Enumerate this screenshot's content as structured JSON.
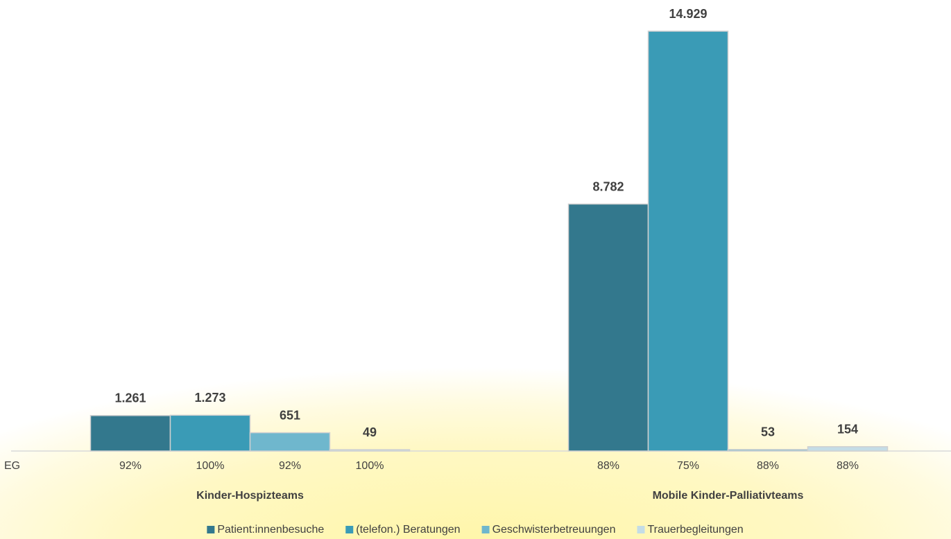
{
  "chart_data": {
    "type": "bar",
    "categories": [
      "Kinder-Hospizteams",
      "Mobile Kinder-Palliativteams"
    ],
    "series": [
      {
        "name": "Patient:innenbesuche",
        "color": "#33788d",
        "values": [
          1261,
          8782
        ],
        "value_labels": [
          "1.261",
          "8.782"
        ]
      },
      {
        "name": "(telefon.) Beratungen",
        "color": "#3a9bb6",
        "values": [
          1273,
          14929
        ],
        "value_labels": [
          "1.273",
          "14.929"
        ]
      },
      {
        "name": "Geschwisterbetreuungen",
        "color": "#6fb7cd",
        "values": [
          651,
          53
        ],
        "value_labels": [
          "651",
          "53"
        ]
      },
      {
        "name": "Trauerbegleitungen",
        "color": "#c4dde6",
        "values": [
          49,
          154
        ],
        "value_labels": [
          "49",
          "154"
        ]
      }
    ],
    "table_row": {
      "label": "EG",
      "cells": [
        [
          "92%",
          "100%",
          "92%",
          "100%"
        ],
        [
          "88%",
          "75%",
          "88%",
          "88%"
        ]
      ]
    },
    "legend": "bottom"
  }
}
